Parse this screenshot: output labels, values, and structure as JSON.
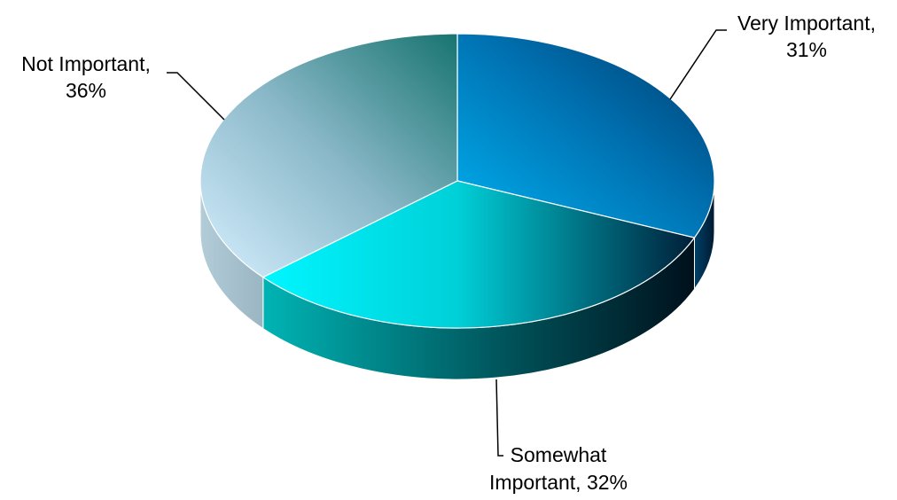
{
  "chart_data": {
    "type": "pie",
    "style": "3d",
    "title": "",
    "slices": [
      {
        "label": "Very Important",
        "value": 31,
        "value_text": "31%",
        "label_line1": "Very Important,",
        "label_line2": "31%",
        "color": "#009fe0"
      },
      {
        "label": "Somewhat Important",
        "value": 32,
        "value_text": "32%",
        "label_line1": "Somewhat",
        "label_line2": "Important, 32%",
        "color": "#00e5f0"
      },
      {
        "label": "Not Important",
        "value": 36,
        "value_text": "36%",
        "label_line1": "Not Important,",
        "label_line2": "36%",
        "color": "#7bb0c0"
      }
    ],
    "legend": "none"
  }
}
